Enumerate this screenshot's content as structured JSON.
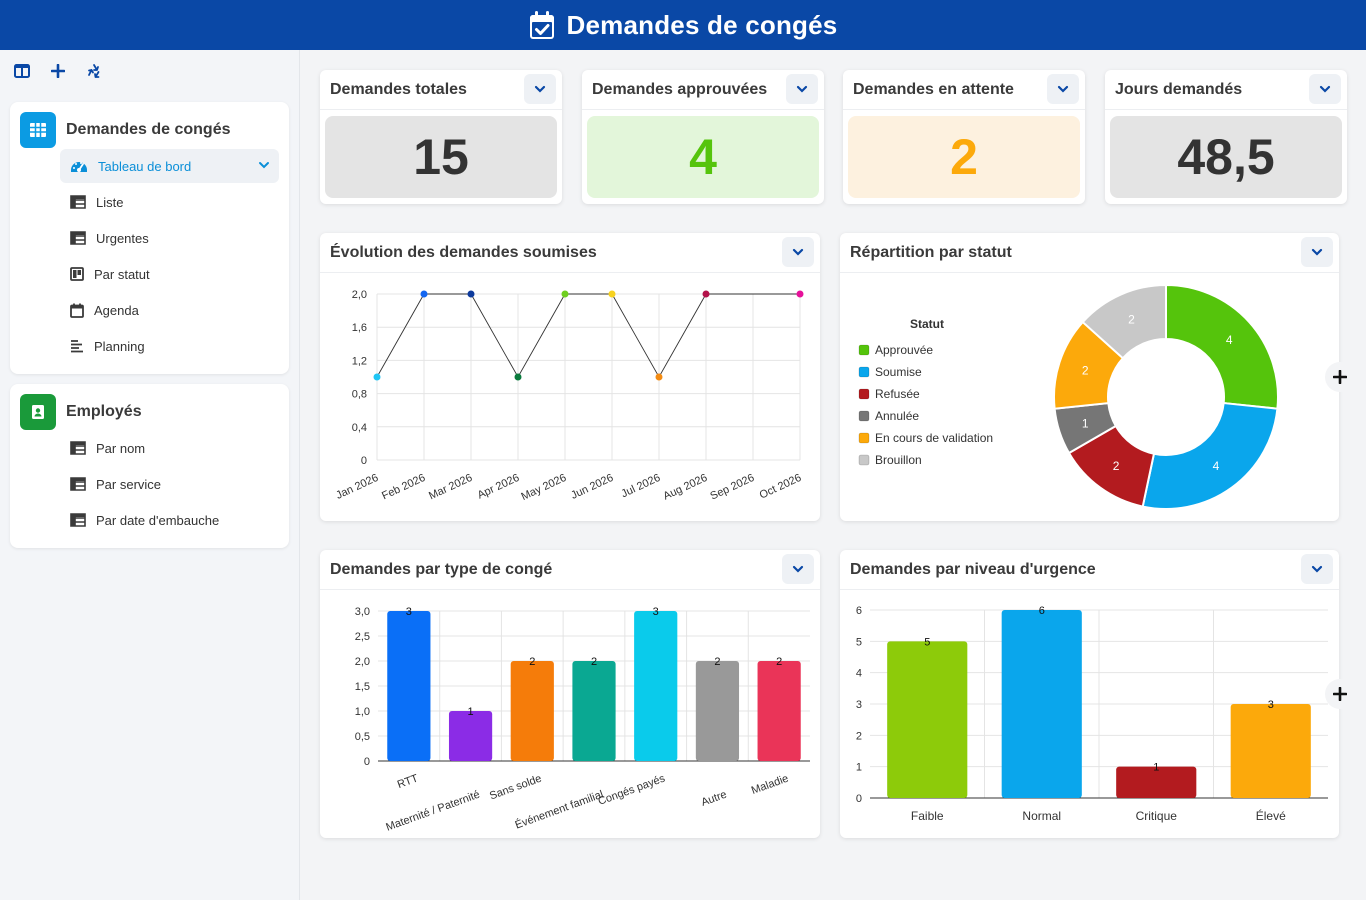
{
  "header": {
    "title": "Demandes de congés",
    "icon": "calendar-check-icon"
  },
  "toolbar": {
    "buttons": [
      "layout-icon",
      "plus-icon",
      "recycle-icon"
    ]
  },
  "sidebar": {
    "conges": {
      "title": "Demandes de congés",
      "color": "#0b9be3",
      "items": [
        {
          "label": "Tableau de bord",
          "icon": "dashboard-icon",
          "active": true
        },
        {
          "label": "Liste",
          "icon": "table-icon"
        },
        {
          "label": "Urgentes",
          "icon": "table-icon"
        },
        {
          "label": "Par statut",
          "icon": "kanban-icon"
        },
        {
          "label": "Agenda",
          "icon": "calendar-icon"
        },
        {
          "label": "Planning",
          "icon": "gantt-icon"
        }
      ]
    },
    "employes": {
      "title": "Employés",
      "color": "#1a9a3a",
      "items": [
        {
          "label": "Par nom",
          "icon": "table-icon"
        },
        {
          "label": "Par service",
          "icon": "table-icon"
        },
        {
          "label": "Par date d'embauche",
          "icon": "table-icon"
        }
      ]
    }
  },
  "kpis": [
    {
      "title": "Demandes totales",
      "value": "15",
      "bg": "#e4e4e4",
      "color": "#333333"
    },
    {
      "title": "Demandes approuvées",
      "value": "4",
      "bg": "#e3f6da",
      "color": "#55c40c"
    },
    {
      "title": "Demandes en attente",
      "value": "2",
      "bg": "#fdf1df",
      "color": "#fca90b"
    },
    {
      "title": "Jours demandés",
      "value": "48,5",
      "bg": "#e4e4e4",
      "color": "#333333"
    }
  ],
  "charts": {
    "line": {
      "title": "Évolution des demandes soumises",
      "chart_data": {
        "type": "line",
        "x": [
          "Jan 2026",
          "Feb 2026",
          "Mar 2026",
          "Apr 2026",
          "May 2026",
          "Jun 2026",
          "Jul 2026",
          "Aug 2026",
          "Sep 2026",
          "Oct 2026"
        ],
        "points": [
          {
            "x": "Jan 2026",
            "y": 1,
            "color": "#1fc6f5"
          },
          {
            "x": "Feb 2026",
            "y": 2,
            "color": "#1266f1"
          },
          {
            "x": "Mar 2026",
            "y": 2,
            "color": "#0d3a9c"
          },
          {
            "x": "Apr 2026",
            "y": 1,
            "color": "#0a7a3d"
          },
          {
            "x": "May 2026",
            "y": 2,
            "color": "#6fcf1f"
          },
          {
            "x": "Jun 2026",
            "y": 2,
            "color": "#f7d21f"
          },
          {
            "x": "Jul 2026",
            "y": 1,
            "color": "#f38b12"
          },
          {
            "x": "Aug 2026",
            "y": 2,
            "color": "#b3124a"
          },
          {
            "x": "Oct 2026",
            "y": 2,
            "color": "#e6119a"
          }
        ],
        "yticks": [
          "0",
          "0,4",
          "0,8",
          "1,2",
          "1,6",
          "2,0"
        ],
        "ylim": [
          0,
          2
        ],
        "grid": true
      }
    },
    "donut": {
      "title": "Répartition par statut",
      "chart_data": {
        "type": "pie",
        "legend_title": "Statut",
        "legend_position": "left",
        "slices": [
          {
            "label": "Approuvée",
            "value": 4,
            "color": "#55c40c"
          },
          {
            "label": "Soumise",
            "value": 4,
            "color": "#0aa6ec"
          },
          {
            "label": "Refusée",
            "value": 2,
            "color": "#b31b1f"
          },
          {
            "label": "Annulée",
            "value": 1,
            "color": "#767676"
          },
          {
            "label": "En cours de validation",
            "value": 2,
            "color": "#fca90b"
          },
          {
            "label": "Brouillon",
            "value": 2,
            "color": "#c8c8c8"
          }
        ]
      }
    },
    "bar_type": {
      "title": "Demandes par type de congé",
      "chart_data": {
        "type": "bar",
        "categories": [
          "RTT",
          "Maternité / Paternité",
          "Sans solde",
          "Événement familial",
          "Congés payés",
          "Autre",
          "Maladie"
        ],
        "values": [
          3,
          1,
          2,
          2,
          3,
          2,
          2
        ],
        "colors": [
          "#0a6ff7",
          "#8b2ce6",
          "#f57c0a",
          "#0aa892",
          "#0acbeb",
          "#999999",
          "#ea3458"
        ],
        "yticks": [
          "0",
          "0,5",
          "1,0",
          "1,5",
          "2,0",
          "2,5",
          "3,0"
        ],
        "ylim": [
          0,
          3
        ],
        "grid": true
      }
    },
    "bar_urgence": {
      "title": "Demandes par niveau d'urgence",
      "chart_data": {
        "type": "bar",
        "categories": [
          "Faible",
          "Normal",
          "Critique",
          "Élevé"
        ],
        "values": [
          5,
          6,
          1,
          3
        ],
        "colors": [
          "#8dcb0a",
          "#0aa6ec",
          "#b31b1f",
          "#fca90b"
        ],
        "yticks": [
          "0",
          "1",
          "2",
          "3",
          "4",
          "5",
          "6"
        ],
        "ylim": [
          0,
          6
        ],
        "grid": true
      }
    }
  }
}
